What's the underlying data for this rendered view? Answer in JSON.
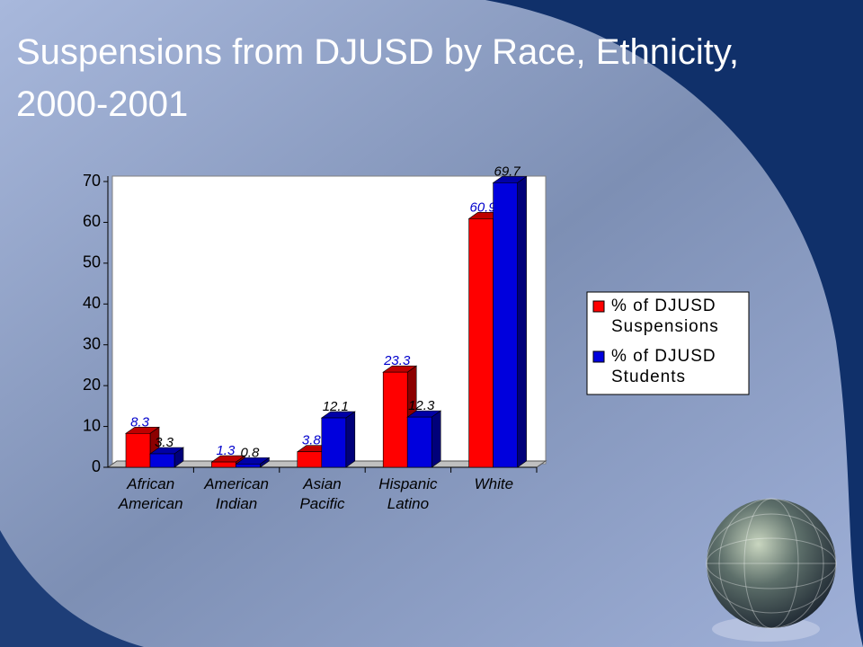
{
  "chart_data": {
    "type": "bar3d",
    "title": "Suspensions from DJUSD by Race, Ethnicity, 2000-2001",
    "categories": [
      "African American",
      "American Indian",
      "Asian Pacific",
      "Hispanic Latino",
      "White"
    ],
    "series": [
      {
        "name": "% of DJUSD Suspensions",
        "color": "#ff0000",
        "values": [
          8.3,
          1.3,
          3.8,
          23.3,
          60.9
        ]
      },
      {
        "name": "% of DJUSD Students",
        "color": "#0000dd",
        "values": [
          3.3,
          0.8,
          12.1,
          12.3,
          69.7
        ]
      }
    ],
    "ylim": [
      0,
      70
    ],
    "yticks": [
      0,
      10,
      20,
      30,
      40,
      50,
      60,
      70
    ],
    "legend": "right"
  }
}
